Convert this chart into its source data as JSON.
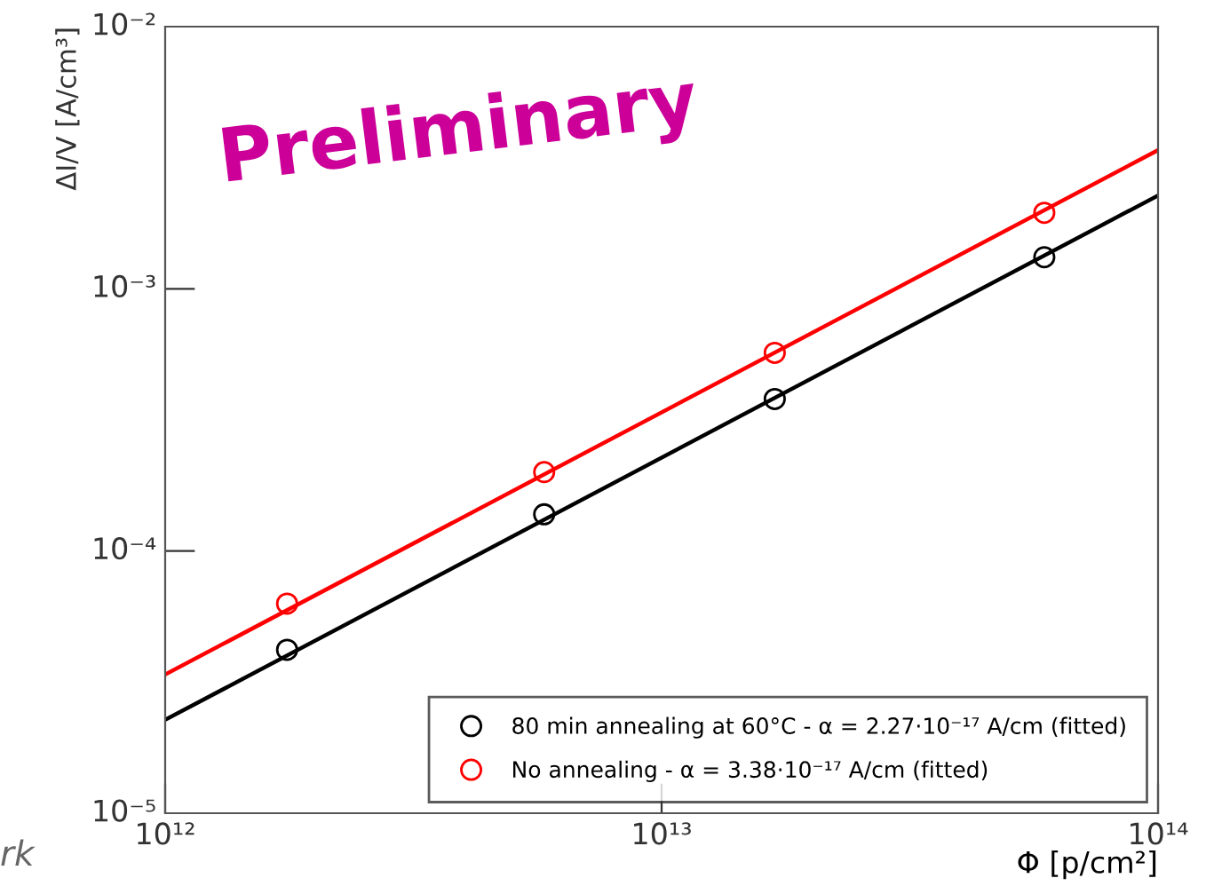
{
  "chart_data": {
    "type": "scatter",
    "xlabel": "Φ [p/cm²]",
    "ylabel": "ΔI/V [A/cm³]",
    "log": "xy",
    "grid": false,
    "legend": "bottom right",
    "marker": "circle",
    "xlim": [
      1000000000000.0,
      100000000000000.0
    ],
    "ylim": [
      1e-05,
      0.01
    ],
    "xticks": [
      {
        "value": 1000000000000.0,
        "label": "10¹²"
      },
      {
        "value": 10000000000000.0,
        "label": "10¹³"
      },
      {
        "value": 100000000000000.0,
        "label": "10¹⁴"
      }
    ],
    "yticks": [
      {
        "value": 1e-05,
        "label": "10⁻⁵"
      },
      {
        "value": 0.0001,
        "label": "10⁻⁴"
      },
      {
        "value": 0.001,
        "label": "10⁻³"
      },
      {
        "value": 0.01,
        "label": "10⁻²"
      }
    ],
    "series": [
      {
        "name": "80 min annealing at 60°C - α = 2.27·10⁻¹⁷ A/cm (fitted)",
        "color": "#000000",
        "x": [
          1760000000000.0,
          5800000000000.0,
          16900000000000.0,
          59000000000000.0
        ],
        "values": [
          4.2e-05,
          0.000138,
          0.00038,
          0.00132
        ]
      },
      {
        "name": "No annealing - α = 3.38·10⁻¹⁷ A/cm (fitted)",
        "color": "#ff0000",
        "x": [
          1760000000000.0,
          5800000000000.0,
          16900000000000.0,
          59000000000000.0
        ],
        "values": [
          6.3e-05,
          0.0002,
          0.00057,
          0.00195
        ]
      },
      {
        "type": "line",
        "marker": "none",
        "color": "#000000",
        "x": [
          1000000000000.0,
          100000000000000.0
        ],
        "values": [
          2.27e-05,
          0.00227
        ]
      },
      {
        "type": "line",
        "marker": "none",
        "color": "#ff0000",
        "x": [
          1000000000000.0,
          100000000000000.0
        ],
        "values": [
          3.38e-05,
          0.00338
        ]
      }
    ],
    "annotations": [
      "Preliminary",
      "rk"
    ]
  }
}
